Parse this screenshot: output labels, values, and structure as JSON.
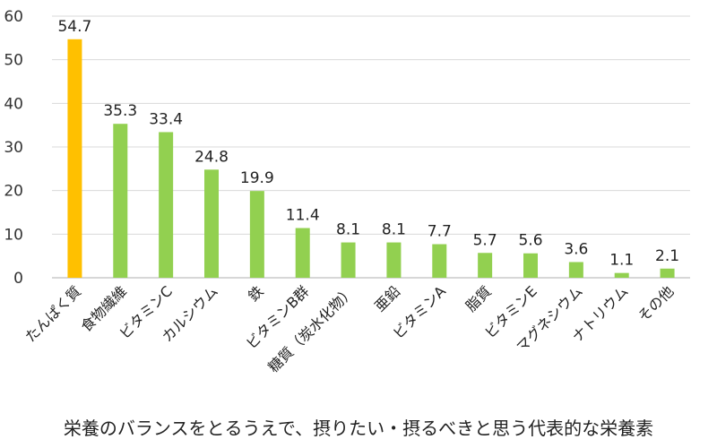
{
  "chart_data": {
    "type": "bar",
    "categories": [
      "たんぱく質",
      "食物繊維",
      "ビタミンC",
      "カルシウム",
      "鉄",
      "ビタミンB群",
      "糖質（炭水化物）",
      "亜鉛",
      "ビタミンA",
      "脂質",
      "ビタミンE",
      "マグネシウム",
      "ナトリウム",
      "その他"
    ],
    "values": [
      54.7,
      35.3,
      33.4,
      24.8,
      19.9,
      11.4,
      8.1,
      8.1,
      7.7,
      5.7,
      5.6,
      3.6,
      1.1,
      2.1
    ],
    "value_labels": [
      "54.7",
      "35.3",
      "33.4",
      "24.8",
      "19.9",
      "11.4",
      "8.1",
      "8.1",
      "7.7",
      "5.7",
      "5.6",
      "3.6",
      "1.1",
      "2.1"
    ],
    "ylim": [
      0,
      60
    ],
    "yticks": [
      "0",
      "10",
      "20",
      "30",
      "40",
      "50",
      "60"
    ],
    "grid": true,
    "colors": {
      "highlight": "#FFC000",
      "default": "#92D050",
      "grid": "#d9d9d9",
      "axis": "#bfbfbf"
    },
    "highlight_index": 0,
    "caption": "栄養のバランスをとるうえで、摂りたい・摂るべきと思う代表的な栄養素"
  }
}
